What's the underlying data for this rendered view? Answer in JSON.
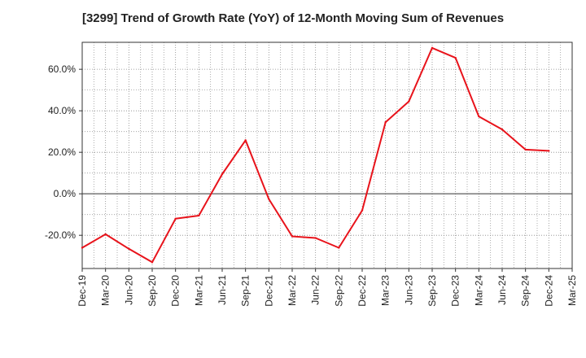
{
  "chart_data": {
    "type": "line",
    "title": "[3299]  Trend of Growth Rate (YoY) of 12-Month Moving Sum of Revenues",
    "xlabel": "",
    "ylabel": "",
    "x_ticks": [
      "Dec-19",
      "Mar-20",
      "Jun-20",
      "Sep-20",
      "Dec-20",
      "Mar-21",
      "Jun-21",
      "Sep-21",
      "Dec-21",
      "Mar-22",
      "Jun-22",
      "Sep-22",
      "Dec-22",
      "Mar-23",
      "Jun-23",
      "Sep-23",
      "Dec-23",
      "Mar-24",
      "Jun-24",
      "Sep-24",
      "Dec-24",
      "Mar-25"
    ],
    "y_ticks": [
      -20,
      0,
      20,
      40,
      60
    ],
    "y_tick_labels": [
      "-20.0%",
      "0.0%",
      "20.0%",
      "40.0%",
      "60.0%"
    ],
    "ylim": [
      -36,
      73
    ],
    "grid": true,
    "series": [
      {
        "color": "#e8131b",
        "x": [
          "Dec-19",
          "Mar-20",
          "Jun-20",
          "Sep-20",
          "Dec-20",
          "Mar-21",
          "Jun-21",
          "Sep-21",
          "Dec-21",
          "Mar-22",
          "Jun-22",
          "Sep-22",
          "Dec-22",
          "Mar-23",
          "Jun-23",
          "Sep-23",
          "Dec-23",
          "Mar-24",
          "Jun-24",
          "Sep-24",
          "Dec-24"
        ],
        "values": [
          -26.0,
          -19.5,
          -26.5,
          -33.0,
          -12.0,
          -10.5,
          9.5,
          25.8,
          -2.5,
          -20.5,
          -21.3,
          -26.0,
          -8.0,
          34.5,
          44.5,
          70.3,
          65.5,
          37.3,
          31.0,
          21.3,
          20.7
        ]
      }
    ]
  }
}
